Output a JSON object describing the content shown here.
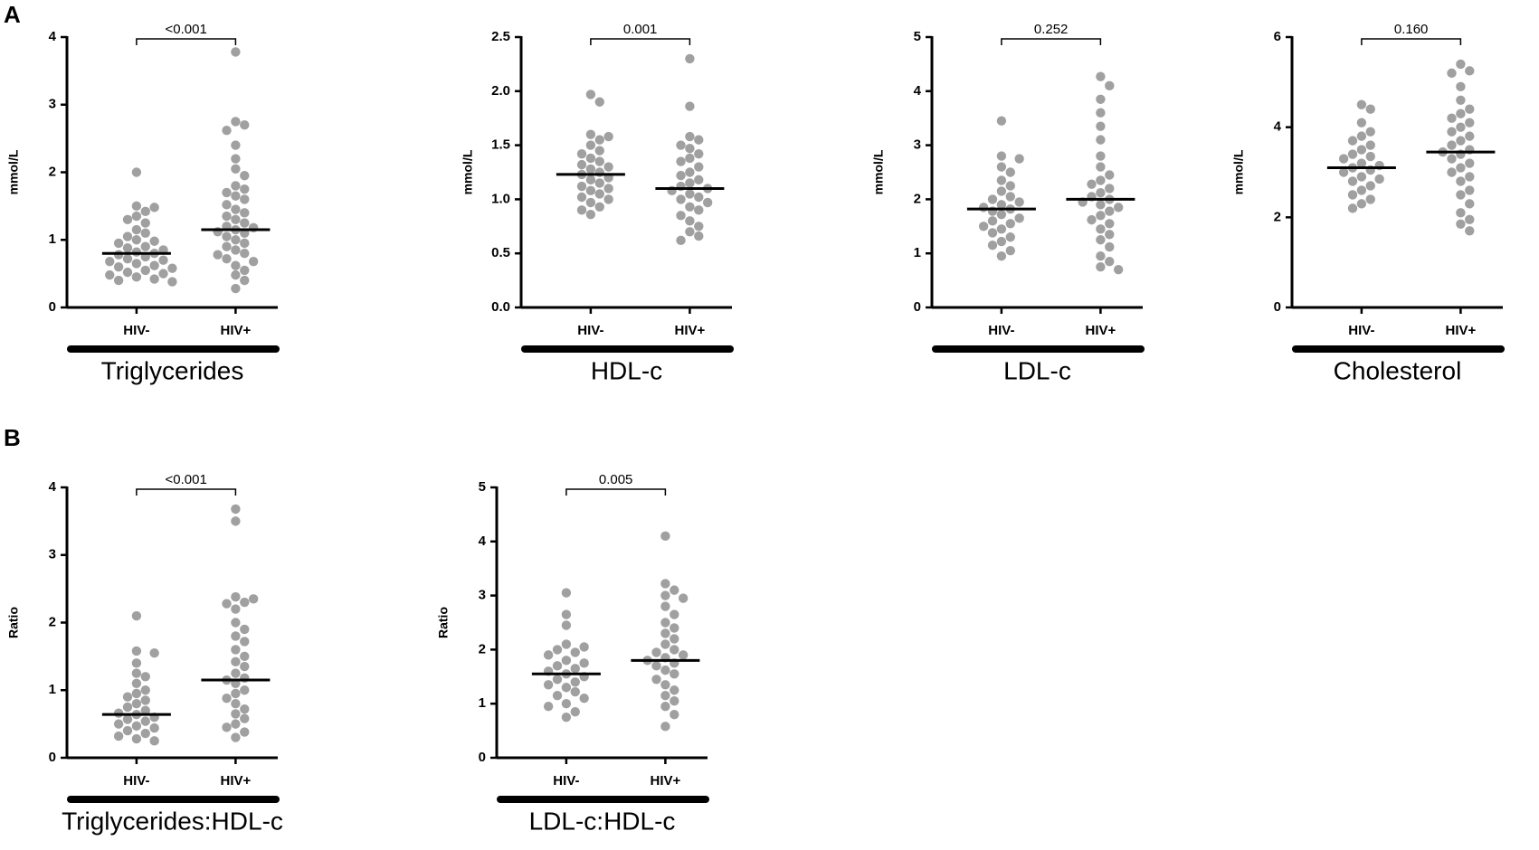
{
  "panel_labels": [
    "A",
    "B"
  ],
  "chart_data": [
    {
      "type": "dotplot",
      "title": "Triglycerides",
      "y_label": "mmol/L",
      "p_label": "<0.001",
      "color": "#a0a0a0",
      "ylim": [
        0,
        4
      ],
      "yticks": [
        0,
        1,
        2,
        3,
        4
      ],
      "series": [
        {
          "name": "HIV-",
          "median": 0.8,
          "values": [
            2.0,
            1.5,
            1.48,
            1.42,
            1.35,
            1.3,
            1.25,
            1.15,
            1.1,
            1.05,
            1.0,
            0.98,
            0.95,
            0.9,
            0.88,
            0.85,
            0.82,
            0.8,
            0.78,
            0.75,
            0.72,
            0.7,
            0.68,
            0.65,
            0.62,
            0.6,
            0.58,
            0.55,
            0.52,
            0.5,
            0.48,
            0.45,
            0.42,
            0.4,
            0.38
          ]
        },
        {
          "name": "HIV+",
          "median": 1.15,
          "values": [
            3.78,
            2.75,
            2.7,
            2.62,
            2.4,
            2.2,
            2.05,
            1.95,
            1.8,
            1.75,
            1.7,
            1.65,
            1.6,
            1.52,
            1.45,
            1.4,
            1.35,
            1.3,
            1.25,
            1.2,
            1.18,
            1.15,
            1.12,
            1.1,
            1.05,
            1.0,
            0.95,
            0.9,
            0.85,
            0.8,
            0.78,
            0.72,
            0.68,
            0.62,
            0.55,
            0.48,
            0.4,
            0.28
          ]
        }
      ]
    },
    {
      "type": "dotplot",
      "title": "HDL-c",
      "y_label": "mmol/L",
      "p_label": "0.001",
      "color": "#a0a0a0",
      "ylim": [
        0,
        2.5
      ],
      "yticks": [
        {
          "value": 0,
          "label": "0.0"
        },
        0.5,
        {
          "value": 1,
          "label": "1.0"
        },
        1.5,
        {
          "value": 2,
          "label": "2.0"
        },
        2.5
      ],
      "series": [
        {
          "name": "HIV-",
          "median": 1.23,
          "values": [
            1.97,
            1.9,
            1.6,
            1.58,
            1.55,
            1.5,
            1.45,
            1.42,
            1.38,
            1.35,
            1.32,
            1.3,
            1.28,
            1.25,
            1.23,
            1.2,
            1.18,
            1.15,
            1.12,
            1.1,
            1.08,
            1.05,
            1.02,
            1.0,
            0.97,
            0.93,
            0.9,
            0.86
          ]
        },
        {
          "name": "HIV+",
          "median": 1.1,
          "values": [
            2.3,
            1.86,
            1.58,
            1.55,
            1.5,
            1.47,
            1.42,
            1.38,
            1.35,
            1.3,
            1.25,
            1.22,
            1.18,
            1.15,
            1.12,
            1.1,
            1.08,
            1.05,
            1.02,
            1.0,
            0.97,
            0.93,
            0.9,
            0.85,
            0.8,
            0.75,
            0.7,
            0.66,
            0.62
          ]
        }
      ]
    },
    {
      "type": "dotplot",
      "title": "LDL-c",
      "y_label": "mmol/L",
      "p_label": "0.252",
      "color": "#a0a0a0",
      "ylim": [
        0,
        5
      ],
      "yticks": [
        0,
        1,
        2,
        3,
        4,
        5
      ],
      "series": [
        {
          "name": "HIV-",
          "median": 1.82,
          "values": [
            3.45,
            2.8,
            2.75,
            2.6,
            2.5,
            2.35,
            2.25,
            2.15,
            2.05,
            2.0,
            1.95,
            1.9,
            1.85,
            1.82,
            1.78,
            1.72,
            1.65,
            1.6,
            1.55,
            1.5,
            1.45,
            1.38,
            1.3,
            1.22,
            1.15,
            1.05,
            0.95
          ]
        },
        {
          "name": "HIV+",
          "median": 2.0,
          "values": [
            4.27,
            4.1,
            3.85,
            3.6,
            3.35,
            3.1,
            2.8,
            2.6,
            2.45,
            2.35,
            2.28,
            2.2,
            2.12,
            2.05,
            2.0,
            1.95,
            1.9,
            1.85,
            1.78,
            1.7,
            1.62,
            1.55,
            1.45,
            1.35,
            1.25,
            1.12,
            0.95,
            0.85,
            0.75,
            0.7
          ]
        }
      ]
    },
    {
      "type": "dotplot",
      "title": "Cholesterol",
      "y_label": "mmol/L",
      "p_label": "0.160",
      "color": "#a0a0a0",
      "ylim": [
        0,
        6
      ],
      "yticks": [
        0,
        2,
        4,
        6
      ],
      "series": [
        {
          "name": "HIV-",
          "median": 3.1,
          "values": [
            4.5,
            4.4,
            4.1,
            3.9,
            3.8,
            3.7,
            3.6,
            3.5,
            3.4,
            3.35,
            3.3,
            3.2,
            3.15,
            3.1,
            3.05,
            3.0,
            2.9,
            2.85,
            2.8,
            2.7,
            2.6,
            2.5,
            2.4,
            2.3,
            2.2
          ]
        },
        {
          "name": "HIV+",
          "median": 3.45,
          "values": [
            5.4,
            5.25,
            5.2,
            4.9,
            4.6,
            4.4,
            4.3,
            4.2,
            4.1,
            4.0,
            3.9,
            3.8,
            3.7,
            3.6,
            3.5,
            3.45,
            3.4,
            3.3,
            3.2,
            3.1,
            3.0,
            2.9,
            2.8,
            2.6,
            2.5,
            2.3,
            2.1,
            1.95,
            1.85,
            1.7
          ]
        }
      ]
    },
    {
      "type": "dotplot",
      "title": "Triglycerides:HDL-c",
      "y_label": "Ratio",
      "p_label": "<0.001",
      "color": "#a0a0a0",
      "ylim": [
        0,
        4
      ],
      "yticks": [
        0,
        1,
        2,
        3,
        4
      ],
      "series": [
        {
          "name": "HIV-",
          "median": 0.64,
          "values": [
            2.1,
            1.58,
            1.55,
            1.4,
            1.25,
            1.2,
            1.1,
            1.0,
            0.95,
            0.9,
            0.85,
            0.8,
            0.75,
            0.7,
            0.66,
            0.64,
            0.6,
            0.57,
            0.54,
            0.5,
            0.47,
            0.44,
            0.4,
            0.36,
            0.32,
            0.28,
            0.25
          ]
        },
        {
          "name": "HIV+",
          "median": 1.15,
          "values": [
            3.68,
            3.5,
            2.38,
            2.35,
            2.3,
            2.28,
            2.2,
            2.0,
            1.9,
            1.8,
            1.72,
            1.6,
            1.5,
            1.42,
            1.35,
            1.25,
            1.18,
            1.15,
            1.1,
            1.0,
            0.95,
            0.88,
            0.8,
            0.72,
            0.65,
            0.58,
            0.5,
            0.45,
            0.38,
            0.3
          ]
        }
      ]
    },
    {
      "type": "dotplot",
      "title": "LDL-c:HDL-c",
      "y_label": "Ratio",
      "p_label": "0.005",
      "color": "#a0a0a0",
      "ylim": [
        0,
        5
      ],
      "yticks": [
        0,
        1,
        2,
        3,
        4,
        5
      ],
      "series": [
        {
          "name": "HIV-",
          "median": 1.55,
          "values": [
            3.05,
            2.65,
            2.45,
            2.1,
            2.05,
            2.0,
            1.95,
            1.9,
            1.8,
            1.75,
            1.7,
            1.65,
            1.6,
            1.55,
            1.5,
            1.45,
            1.4,
            1.35,
            1.3,
            1.22,
            1.15,
            1.1,
            1.0,
            0.95,
            0.85,
            0.75
          ]
        },
        {
          "name": "HIV+",
          "median": 1.8,
          "values": [
            4.1,
            3.22,
            3.1,
            3.0,
            2.95,
            2.8,
            2.65,
            2.5,
            2.4,
            2.3,
            2.2,
            2.1,
            2.0,
            1.95,
            1.9,
            1.85,
            1.8,
            1.75,
            1.7,
            1.62,
            1.55,
            1.45,
            1.35,
            1.25,
            1.15,
            1.05,
            0.95,
            0.8,
            0.58
          ]
        }
      ]
    }
  ]
}
